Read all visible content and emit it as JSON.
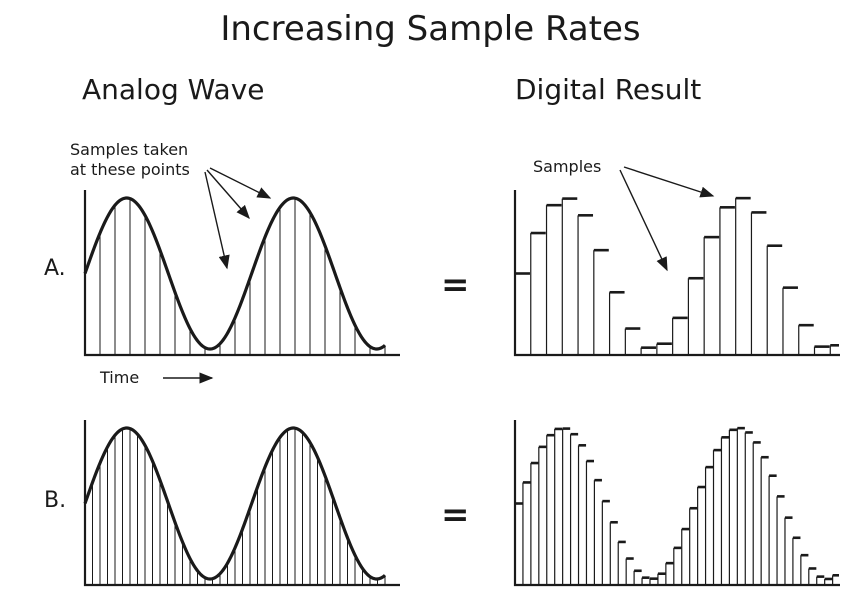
{
  "title": "Increasing Sample Rates",
  "headings": {
    "analog": "Analog Wave",
    "digital": "Digital Result"
  },
  "annotations": {
    "samples_taken": [
      "Samples taken",
      "at these points"
    ],
    "samples": "Samples",
    "time": "Time"
  },
  "rows": [
    {
      "label": "A.",
      "equals": "=",
      "samples_per_period": 11
    },
    {
      "label": "B.",
      "equals": "=",
      "samples_per_period": 22
    }
  ],
  "wave": {
    "periods": 1.8,
    "start_level": 0.5,
    "shape": "sine"
  }
}
